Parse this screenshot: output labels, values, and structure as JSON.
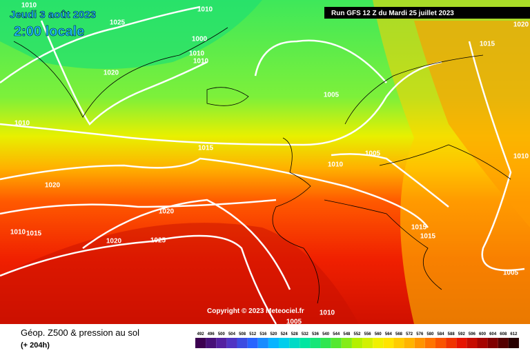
{
  "header": {
    "date": "Jeudi 3 août 2023",
    "time": "2:00 locale",
    "run": "Run GFS 12 Z du Mardi 25 juillet 2023"
  },
  "copyright": "Copyright © 2023 Meteociel.fr",
  "legend": {
    "title": "Géop. Z500 & pression au sol",
    "lead": "(+ 204h)",
    "scale": [
      492,
      496,
      500,
      504,
      508,
      512,
      516,
      520,
      524,
      528,
      532,
      536,
      540,
      544,
      548,
      552,
      556,
      560,
      564,
      568,
      572,
      576,
      580,
      584,
      588,
      592,
      596,
      600,
      604,
      608,
      612
    ]
  },
  "isobars": [
    1010,
    1025,
    1010,
    1000,
    1010,
    1010,
    1020,
    1005,
    1010,
    1015,
    1005,
    1010,
    1020,
    1020,
    1015,
    1015,
    1010,
    1015,
    1020,
    1025,
    1005,
    1010,
    1005,
    1020,
    1015,
    1010
  ]
}
